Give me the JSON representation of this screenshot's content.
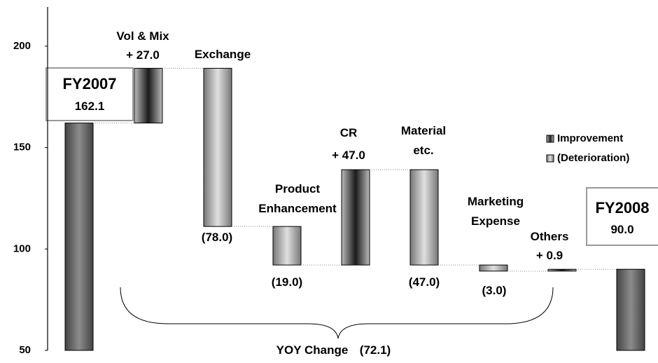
{
  "chart_data": {
    "type": "waterfall",
    "categories": [
      "FY2007",
      "Vol & Mix",
      "Exchange",
      "Product Enhancement",
      "CR",
      "Material etc.",
      "Marketing Expense",
      "Others",
      "FY2008"
    ],
    "values": [
      162.1,
      27.0,
      -78.0,
      -19.0,
      47.0,
      -47.0,
      -3.0,
      0.9,
      90.0
    ],
    "value_labels": [
      "162.1",
      "+ 27.0",
      "(78.0)",
      "(19.0)",
      "+ 47.0",
      "(47.0)",
      "(3.0)",
      "+ 0.9",
      "90.0"
    ],
    "ylim": [
      50,
      220
    ],
    "yticks": [
      50,
      100,
      150,
      200
    ],
    "total_color": "#8c8c8c",
    "legend": [
      {
        "name": "Improvement",
        "color": "#1a1a1a"
      },
      {
        "name": "(Deterioration)",
        "color": "#a8a8a8"
      }
    ],
    "annotation": "YOY Change",
    "annotation_value_label": "(72.1)"
  }
}
